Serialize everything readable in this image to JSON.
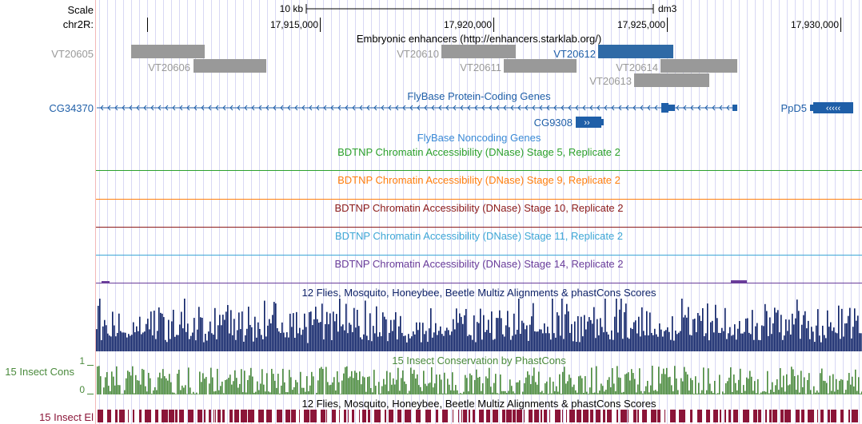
{
  "scale": {
    "label": "Scale",
    "bar_label": "10 kb",
    "assembly": "dm3"
  },
  "chrom_label": "chr2R:",
  "ruler_ticks": [
    "17,915,000",
    "17,920,000",
    "17,925,000",
    "17,930,000"
  ],
  "tracks": {
    "enhancers": {
      "title": "Embryonic enhancers (http://enhancers.starklab.org/)",
      "items": [
        {
          "name": "VT20605",
          "selected": false
        },
        {
          "name": "VT20606",
          "selected": false
        },
        {
          "name": "VT20610",
          "selected": false
        },
        {
          "name": "VT20611",
          "selected": false
        },
        {
          "name": "VT20612",
          "selected": true
        },
        {
          "name": "VT20614",
          "selected": false
        },
        {
          "name": "VT20613",
          "selected": false
        }
      ]
    },
    "protein_coding": {
      "title": "FlyBase Protein-Coding Genes",
      "genes": [
        "CG34370",
        "PpD5",
        "CG9308"
      ]
    },
    "noncoding": {
      "title": "FlyBase Noncoding Genes"
    },
    "dnase": [
      {
        "title": "BDTNP Chromatin Accessibility (DNase) Stage 5, Replicate 2",
        "color": "#2ca02c"
      },
      {
        "title": "BDTNP Chromatin Accessibility (DNase) Stage 9, Replicate 2",
        "color": "#ff7f0e"
      },
      {
        "title": "BDTNP Chromatin Accessibility (DNase) Stage 10, Replicate 2",
        "color": "#8b1a1a"
      },
      {
        "title": "BDTNP Chromatin Accessibility (DNase) Stage 11, Replicate 2",
        "color": "#3ea7d6"
      },
      {
        "title": "BDTNP Chromatin Accessibility (DNase) Stage 14, Replicate 2",
        "color": "#6a3d9a"
      }
    ],
    "multiz": {
      "title": "12 Flies, Mosquito, Honeybee, Beetle Multiz Alignments & phastCons Scores",
      "color": "#0b1f66"
    },
    "cons": {
      "title": "15 Insect Conservation by PhastCons",
      "left_label": "15 Insect Cons",
      "axis_max": "1",
      "axis_min": "0",
      "color": "#4a8a3c"
    },
    "elements": {
      "title": "12 Flies, Mosquito, Honeybee, Beetle Multiz Alignments & phastCons Scores",
      "left_label": "15 Insect El",
      "color": "#8b1538"
    }
  },
  "colors": {
    "gene_blue": "#1f5fa8",
    "enhancer_gray": "#999999",
    "enhancer_selected": "#2f6aa6",
    "grid": "#d6d6f5",
    "left_border": "#f2b8b8"
  }
}
